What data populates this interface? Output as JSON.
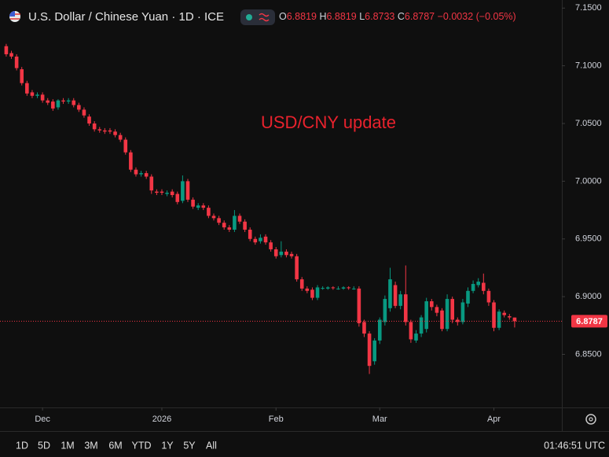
{
  "header": {
    "symbol": "U.S. Dollar / Chinese Yuan · 1D · ICE",
    "ohlc_letters": [
      "O",
      "H",
      "L",
      "C"
    ],
    "change": "−0.0032 (−0.05%)"
  },
  "chart_data": {
    "type": "candlestick",
    "annotation": "USD/CNY update",
    "up_color": "#089981",
    "down_color": "#f23645",
    "grid": false,
    "ylim": [
      6.804,
      7.157
    ],
    "yticks": [
      {
        "value": 7.15,
        "label": "7.1500"
      },
      {
        "value": 7.1,
        "label": "7.1000"
      },
      {
        "value": 7.05,
        "label": "7.0500"
      },
      {
        "value": 7.0,
        "label": "7.0000"
      },
      {
        "value": 6.95,
        "label": "6.9500"
      },
      {
        "value": 6.9,
        "label": "6.9000"
      },
      {
        "value": 6.85,
        "label": "6.8500"
      }
    ],
    "xlim": [
      -1.2,
      107.1
    ],
    "xticks": [
      {
        "value": 7,
        "label": "Dec"
      },
      {
        "value": 30,
        "label": "2026"
      },
      {
        "value": 52,
        "label": "Feb"
      },
      {
        "value": 72,
        "label": "Mar"
      },
      {
        "value": 94,
        "label": "Apr"
      }
    ],
    "open": [
      7.117,
      7.111,
      7.108,
      7.097,
      7.085,
      7.077,
      7.074,
      7.075,
      7.07,
      7.069,
      7.064,
      7.07,
      7.069,
      7.07,
      7.066,
      7.062,
      7.056,
      7.05,
      7.045,
      7.044,
      7.044,
      7.043,
      7.04,
      7.036,
      7.025,
      7.01,
      7.006,
      7.007,
      7.004,
      6.991,
      6.991,
      6.989,
      6.991,
      6.989,
      6.983,
      7.0,
      6.984,
      6.977,
      6.979,
      6.977,
      6.97,
      6.968,
      6.964,
      6.96,
      6.958,
      6.97,
      6.965,
      6.958,
      6.95,
      6.948,
      6.952,
      6.947,
      6.941,
      6.936,
      6.939,
      6.937,
      6.935,
      6.915,
      6.907,
      6.906,
      6.899,
      6.907,
      6.907,
      6.908,
      6.907,
      6.907,
      6.908,
      6.907,
      6.907,
      6.878,
      6.868,
      6.844,
      6.862,
      6.878,
      6.89,
      6.91,
      6.892,
      6.902,
      6.878,
      6.862,
      6.868,
      6.872,
      6.896,
      6.891,
      6.888,
      6.872,
      6.898,
      6.88,
      6.878,
      6.894,
      6.905,
      6.91,
      6.912,
      6.905,
      6.895,
      6.873,
      6.886,
      6.883,
      6.8819
    ],
    "high": [
      7.119,
      7.113,
      7.11,
      7.099,
      7.087,
      7.079,
      7.077,
      7.077,
      7.072,
      7.071,
      7.071,
      7.072,
      7.072,
      7.072,
      7.068,
      7.064,
      7.058,
      7.052,
      7.047,
      7.046,
      7.046,
      7.045,
      7.042,
      7.038,
      7.027,
      7.012,
      7.009,
      7.009,
      7.006,
      6.993,
      6.993,
      6.992,
      6.993,
      6.991,
      7.005,
      7.002,
      6.986,
      6.981,
      6.981,
      6.979,
      6.972,
      6.97,
      6.966,
      6.962,
      6.975,
      6.972,
      6.967,
      6.96,
      6.952,
      6.954,
      6.954,
      6.949,
      6.943,
      6.948,
      6.941,
      6.939,
      6.937,
      6.917,
      6.909,
      6.908,
      6.91,
      6.909,
      6.909,
      6.909,
      6.909,
      6.909,
      6.909,
      6.909,
      6.909,
      6.88,
      6.87,
      6.864,
      6.882,
      6.901,
      6.925,
      6.913,
      6.905,
      6.927,
      6.88,
      6.871,
      6.884,
      6.899,
      6.898,
      6.893,
      6.89,
      6.902,
      6.9,
      6.882,
      6.898,
      6.908,
      6.914,
      6.916,
      6.92,
      6.907,
      6.897,
      6.889,
      6.888,
      6.885,
      6.8819
    ],
    "low": [
      7.108,
      7.106,
      7.096,
      7.083,
      7.074,
      7.072,
      7.072,
      7.068,
      7.066,
      7.061,
      7.062,
      7.067,
      7.067,
      7.064,
      7.06,
      7.055,
      7.048,
      7.043,
      7.042,
      7.041,
      7.041,
      7.038,
      7.034,
      7.023,
      7.008,
      7.004,
      7.004,
      7.002,
      6.989,
      6.988,
      6.988,
      6.987,
      6.986,
      6.98,
      6.981,
      6.982,
      6.976,
      6.975,
      6.975,
      6.968,
      6.966,
      6.962,
      6.958,
      6.956,
      6.956,
      6.963,
      6.956,
      6.948,
      6.945,
      6.946,
      6.945,
      6.939,
      6.933,
      6.934,
      6.934,
      6.933,
      6.913,
      6.905,
      6.903,
      6.897,
      6.897,
      6.906,
      6.906,
      6.906,
      6.906,
      6.906,
      6.906,
      6.906,
      6.874,
      6.865,
      6.833,
      6.841,
      6.859,
      6.875,
      6.887,
      6.89,
      6.889,
      6.875,
      6.86,
      6.86,
      6.865,
      6.869,
      6.888,
      6.883,
      6.87,
      6.87,
      6.877,
      6.875,
      6.876,
      6.891,
      6.903,
      6.908,
      6.902,
      6.892,
      6.87,
      6.871,
      6.882,
      6.88,
      6.8733
    ],
    "close": [
      7.11,
      7.108,
      7.098,
      7.085,
      7.076,
      7.074,
      7.075,
      7.07,
      7.068,
      7.063,
      7.07,
      7.069,
      7.07,
      7.066,
      7.062,
      7.057,
      7.05,
      7.045,
      7.044,
      7.043,
      7.043,
      7.04,
      7.036,
      7.025,
      7.01,
      7.006,
      7.007,
      7.004,
      6.992,
      6.99,
      6.99,
      6.99,
      6.988,
      6.982,
      7.0,
      6.984,
      6.978,
      6.979,
      6.977,
      6.97,
      6.968,
      6.964,
      6.96,
      6.958,
      6.97,
      6.965,
      6.958,
      6.95,
      6.947,
      6.951,
      6.947,
      6.941,
      6.935,
      6.939,
      6.936,
      6.935,
      6.915,
      6.907,
      6.905,
      6.899,
      6.908,
      6.9075,
      6.908,
      6.9075,
      6.907,
      6.908,
      6.9075,
      6.907,
      6.877,
      6.868,
      6.84,
      6.862,
      6.88,
      6.898,
      6.915,
      6.892,
      6.902,
      6.878,
      6.863,
      6.868,
      6.882,
      6.896,
      6.891,
      6.886,
      6.872,
      6.898,
      6.88,
      6.878,
      6.895,
      6.905,
      6.911,
      6.913,
      6.905,
      6.895,
      6.873,
      6.887,
      6.884,
      6.882,
      6.8787
    ]
  },
  "toolbar": {
    "ranges": [
      "1D",
      "5D",
      "1M",
      "3M",
      "6M",
      "YTD",
      "1Y",
      "5Y",
      "All"
    ],
    "time": "01:46:51 UTC"
  }
}
